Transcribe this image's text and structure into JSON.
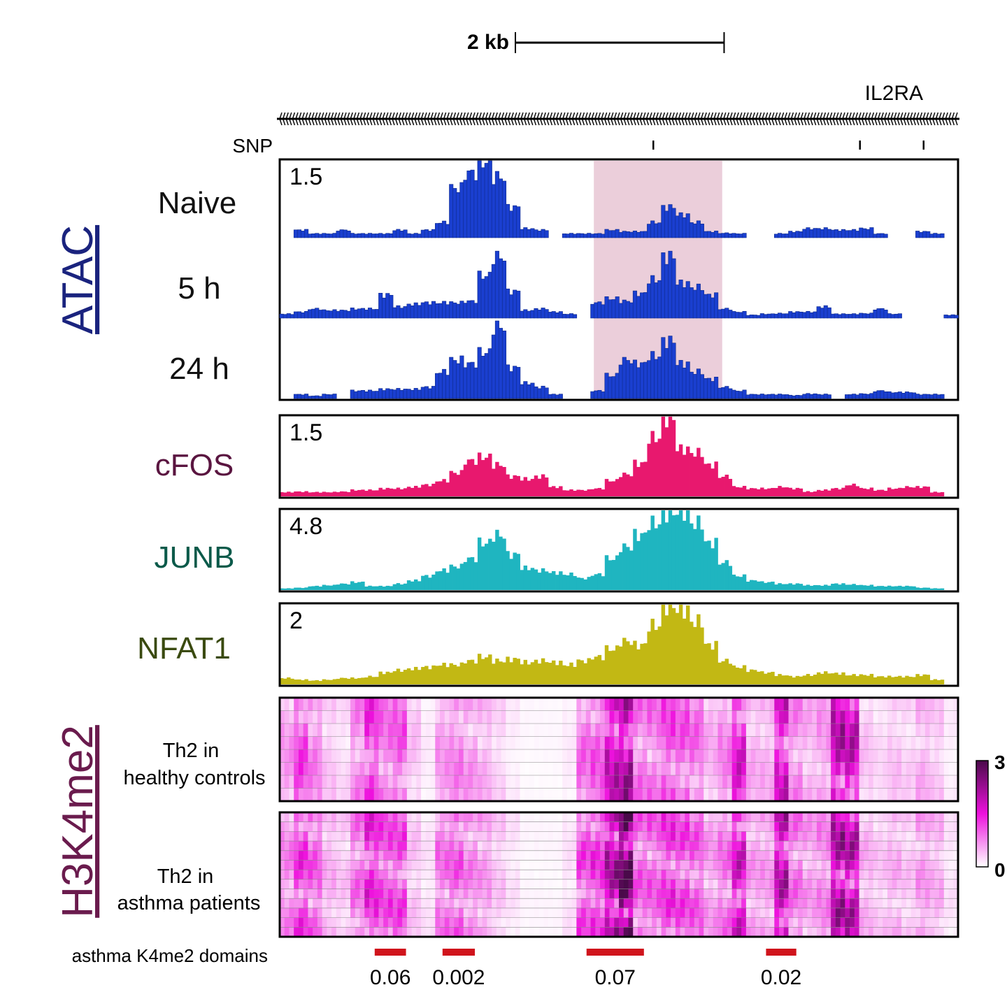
{
  "chart_data": {
    "type": "area",
    "x_unit": "kb",
    "x_span_kb": 6.5,
    "scale_bar": {
      "label": "2 kb",
      "length_kb": 2
    },
    "gene": {
      "name": "IL2RA",
      "strand": "-"
    },
    "snp": {
      "label": "SNP",
      "positions_kb": [
        3.58,
        5.56,
        6.17
      ]
    },
    "highlight_region_kb": [
      3.01,
      4.24
    ],
    "highlight_color": "#e8c6d4",
    "groups": [
      {
        "label": "ATAC",
        "color": "#1a237e"
      },
      {
        "label": "H3K4me2",
        "color": "#6a1b4d"
      }
    ],
    "tracks": [
      {
        "name": "Naive",
        "group": "ATAC",
        "max_label": "1.5",
        "max": 1.5,
        "color": "#1a3fd0",
        "label_color": "#111111",
        "values": [
          0,
          0.15,
          0.08,
          0.08,
          0.15,
          0.08,
          0.08,
          0.08,
          0.15,
          0.08,
          0.15,
          0.3,
          0.98,
          1.28,
          1.5,
          1.2,
          0.6,
          0.18,
          0.15,
          0,
          0.08,
          0.08,
          0.08,
          0.15,
          0.12,
          0.12,
          0.3,
          0.6,
          0.45,
          0.3,
          0.12,
          0.09,
          0.08,
          0,
          0,
          0.08,
          0.12,
          0.18,
          0.18,
          0.15,
          0.15,
          0.18,
          0.08,
          0,
          0,
          0.12,
          0.08,
          0
        ]
      },
      {
        "name": "5 h",
        "group": "ATAC",
        "max_label": "",
        "max": 1.5,
        "color": "#1a3fd0",
        "label_color": "#111111",
        "values": [
          0.08,
          0.12,
          0.18,
          0.15,
          0.15,
          0.18,
          0.18,
          0.45,
          0.22,
          0.27,
          0.3,
          0.3,
          0.3,
          0.33,
          0.83,
          1.2,
          0.52,
          0.15,
          0.18,
          0.12,
          0.08,
          0,
          0.3,
          0.38,
          0.33,
          0.48,
          0.75,
          1.2,
          0.68,
          0.6,
          0.45,
          0.18,
          0.12,
          0.06,
          0.08,
          0.09,
          0.12,
          0.12,
          0.22,
          0.08,
          0.08,
          0.09,
          0.18,
          0.08,
          0,
          0,
          0,
          0.06
        ]
      },
      {
        "name": "24 h",
        "group": "ATAC",
        "max_label": "",
        "max": 1.5,
        "color": "#1a3fd0",
        "label_color": "#111111",
        "values": [
          0,
          0.08,
          0.05,
          0.08,
          0,
          0.15,
          0.15,
          0.18,
          0.18,
          0.18,
          0.22,
          0.52,
          0.75,
          0.68,
          0.9,
          1.42,
          0.6,
          0.3,
          0.22,
          0.08,
          0,
          0,
          0.15,
          0.45,
          0.75,
          0.68,
          0.83,
          1.12,
          0.68,
          0.52,
          0.38,
          0.22,
          0.15,
          0.08,
          0.08,
          0.08,
          0.06,
          0.09,
          0.08,
          0,
          0.08,
          0.09,
          0.15,
          0.12,
          0.12,
          0.08,
          0.08,
          0
        ]
      },
      {
        "name": "cFOS",
        "group": "",
        "max_label": "1.5",
        "max": 1.5,
        "color": "#e8186e",
        "label_color": "#5a1540",
        "values": [
          0.08,
          0.09,
          0.08,
          0.08,
          0.09,
          0.12,
          0.12,
          0.15,
          0.15,
          0.18,
          0.22,
          0.3,
          0.45,
          0.68,
          0.75,
          0.6,
          0.38,
          0.33,
          0.38,
          0.18,
          0.12,
          0.12,
          0.15,
          0.3,
          0.42,
          0.63,
          1.12,
          1.5,
          0.9,
          0.83,
          0.6,
          0.38,
          0.18,
          0.15,
          0.15,
          0.18,
          0.15,
          0.09,
          0.12,
          0.15,
          0.22,
          0.15,
          0.12,
          0.15,
          0.18,
          0.18,
          0.08,
          0
        ]
      },
      {
        "name": "JUNB",
        "group": "",
        "max_label": "4.8",
        "max": 4.8,
        "color": "#1fb5c0",
        "label_color": "#0b5a4a",
        "values": [
          0.1,
          0.14,
          0.24,
          0.29,
          0.38,
          0.48,
          0.24,
          0.24,
          0.38,
          0.58,
          0.86,
          1.2,
          1.44,
          1.92,
          2.88,
          3.36,
          2.16,
          1.34,
          1.2,
          1.06,
          0.96,
          0.72,
          0.96,
          1.92,
          2.64,
          3.36,
          4.08,
          4.7,
          4.8,
          4.08,
          2.88,
          1.68,
          0.86,
          0.58,
          0.48,
          0.38,
          0.38,
          0.29,
          0.29,
          0.38,
          0.34,
          0.29,
          0.24,
          0.24,
          0.24,
          0.14,
          0.1,
          0
        ]
      },
      {
        "name": "NFAT1",
        "group": "",
        "max_label": "2",
        "max": 2,
        "color": "#c2b814",
        "label_color": "#3a4a10",
        "values": [
          0.16,
          0.12,
          0.1,
          0.12,
          0.16,
          0.16,
          0.2,
          0.3,
          0.36,
          0.4,
          0.44,
          0.5,
          0.5,
          0.6,
          0.7,
          0.6,
          0.64,
          0.56,
          0.6,
          0.56,
          0.5,
          0.6,
          0.7,
          0.9,
          1.1,
          1.0,
          1.5,
          2.0,
          1.9,
          1.6,
          1.0,
          0.6,
          0.44,
          0.36,
          0.3,
          0.24,
          0.2,
          0.24,
          0.3,
          0.28,
          0.24,
          0.24,
          0.2,
          0.2,
          0.2,
          0.24,
          0.12,
          0
        ]
      }
    ],
    "heatmaps": [
      {
        "label_lines": [
          "Th2 in",
          "healthy controls"
        ],
        "rows": 8,
        "mean_profile": [
          0.5,
          0.9,
          0.6,
          0.3,
          0.2,
          0.6,
          1.0,
          0.7,
          0.8,
          0.3,
          0.1,
          0.5,
          0.6,
          0.5,
          0.4,
          0.24,
          0.1,
          0.04,
          0.04,
          0.04,
          0.1,
          0.7,
          0.8,
          1.4,
          1.6,
          0.7,
          0.7,
          0.9,
          0.8,
          0.7,
          0.4,
          0.6,
          1.2,
          0.4,
          0.4,
          1.3,
          0.6,
          0.4,
          0.5,
          1.5,
          1.4,
          0.3,
          0.2,
          0.3,
          0.24,
          0.4,
          0.3,
          0.1
        ]
      },
      {
        "label_lines": [
          "Th2 in",
          "asthma patients"
        ],
        "rows": 13,
        "mean_profile": [
          0.6,
          1.0,
          0.8,
          0.4,
          0.3,
          0.7,
          1.1,
          0.9,
          0.9,
          0.3,
          0.15,
          0.7,
          0.8,
          0.6,
          0.5,
          0.3,
          0.15,
          0.05,
          0.05,
          0.05,
          0.15,
          0.9,
          1.0,
          1.6,
          2.2,
          0.8,
          0.8,
          1.0,
          0.9,
          0.8,
          0.5,
          0.7,
          1.3,
          0.5,
          0.5,
          1.5,
          0.7,
          0.5,
          0.6,
          1.6,
          1.5,
          0.4,
          0.3,
          0.4,
          0.3,
          0.5,
          0.4,
          0.15
        ]
      }
    ],
    "colorbar": {
      "min": 0,
      "max": 3,
      "min_label": "0",
      "max_label": "3",
      "colors": [
        "#ffffff",
        "#ee11dd",
        "#4a0a4a"
      ]
    },
    "domains": {
      "label": "asthma K4me2 domains",
      "color": "#d0141c",
      "items": [
        {
          "start_kb": 0.91,
          "end_kb": 1.21,
          "pvalue": "0.06"
        },
        {
          "start_kb": 1.56,
          "end_kb": 1.87,
          "pvalue": "0.002"
        },
        {
          "start_kb": 2.94,
          "end_kb": 3.49,
          "pvalue": "0.07"
        },
        {
          "start_kb": 4.66,
          "end_kb": 4.95,
          "pvalue": "0.02"
        }
      ]
    }
  }
}
